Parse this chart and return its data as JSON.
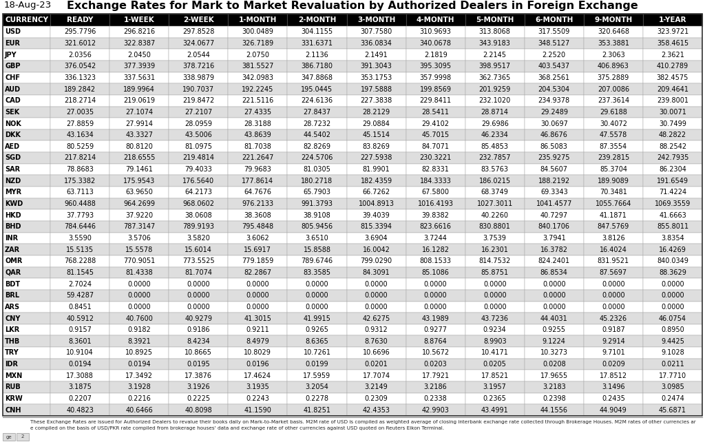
{
  "date": "18-Aug-23",
  "title": "Exchange Rates for Mark to Market Revaluation by Authorized Dealers in Foreign Exchange",
  "headers": [
    "CURRENCY",
    "READY",
    "1-WEEK",
    "2-WEEK",
    "1-MONTH",
    "2-MONTH",
    "3-MONTH",
    "4-MONTH",
    "5-MONTH",
    "6-MONTH",
    "9-MONTH",
    "1-YEAR"
  ],
  "rows": [
    [
      "USD",
      "295.7796",
      "296.8216",
      "297.8528",
      "300.0489",
      "304.1155",
      "307.7580",
      "310.9693",
      "313.8068",
      "317.5509",
      "320.6468",
      "323.9721"
    ],
    [
      "EUR",
      "321.6012",
      "322.8387",
      "324.0677",
      "326.7189",
      "331.6371",
      "336.0834",
      "340.0678",
      "343.9183",
      "348.5127",
      "353.3881",
      "358.4615"
    ],
    [
      "JPY",
      "2.0356",
      "2.0450",
      "2.0544",
      "2.0750",
      "2.1136",
      "2.1491",
      "2.1819",
      "2.2145",
      "2.2520",
      "2.3063",
      "2.3621"
    ],
    [
      "GBP",
      "376.0542",
      "377.3939",
      "378.7216",
      "381.5527",
      "386.7180",
      "391.3043",
      "395.3095",
      "398.9517",
      "403.5437",
      "406.8963",
      "410.2789"
    ],
    [
      "CHF",
      "336.1323",
      "337.5631",
      "338.9879",
      "342.0983",
      "347.8868",
      "353.1753",
      "357.9998",
      "362.7365",
      "368.2561",
      "375.2889",
      "382.4575"
    ],
    [
      "AUD",
      "189.2842",
      "189.9964",
      "190.7037",
      "192.2245",
      "195.0445",
      "197.5888",
      "199.8569",
      "201.9259",
      "204.5304",
      "207.0086",
      "209.4641"
    ],
    [
      "CAD",
      "218.2714",
      "219.0619",
      "219.8472",
      "221.5116",
      "224.6136",
      "227.3838",
      "229.8411",
      "232.1020",
      "234.9378",
      "237.3614",
      "239.8001"
    ],
    [
      "SEK",
      "27.0035",
      "27.1074",
      "27.2107",
      "27.4335",
      "27.8437",
      "28.2129",
      "28.5411",
      "28.8714",
      "29.2489",
      "29.6188",
      "30.0071"
    ],
    [
      "NOK",
      "27.8859",
      "27.9914",
      "28.0959",
      "28.3188",
      "28.7232",
      "29.0884",
      "29.4102",
      "29.6986",
      "30.0697",
      "30.4072",
      "30.7499"
    ],
    [
      "DKK",
      "43.1634",
      "43.3327",
      "43.5006",
      "43.8639",
      "44.5402",
      "45.1514",
      "45.7015",
      "46.2334",
      "46.8676",
      "47.5578",
      "48.2822"
    ],
    [
      "AED",
      "80.5259",
      "80.8120",
      "81.0975",
      "81.7038",
      "82.8269",
      "83.8269",
      "84.7071",
      "85.4853",
      "86.5083",
      "87.3554",
      "88.2542"
    ],
    [
      "SGD",
      "217.8214",
      "218.6555",
      "219.4814",
      "221.2647",
      "224.5706",
      "227.5938",
      "230.3221",
      "232.7857",
      "235.9275",
      "239.2815",
      "242.7935"
    ],
    [
      "SAR",
      "78.8683",
      "79.1461",
      "79.4033",
      "79.9683",
      "81.0305",
      "81.9901",
      "82.8331",
      "83.5763",
      "84.5607",
      "85.3704",
      "86.2304"
    ],
    [
      "NZD",
      "175.3382",
      "175.9543",
      "176.5640",
      "177.8614",
      "180.2718",
      "182.4359",
      "184.3333",
      "186.0215",
      "188.2192",
      "189.9089",
      "191.6549"
    ],
    [
      "MYR",
      "63.7113",
      "63.9650",
      "64.2173",
      "64.7676",
      "65.7903",
      "66.7262",
      "67.5800",
      "68.3749",
      "69.3343",
      "70.3481",
      "71.4224"
    ],
    [
      "KWD",
      "960.4488",
      "964.2699",
      "968.0602",
      "976.2133",
      "991.3793",
      "1004.8913",
      "1016.4193",
      "1027.3011",
      "1041.4577",
      "1055.7664",
      "1069.3559"
    ],
    [
      "HKD",
      "37.7793",
      "37.9220",
      "38.0608",
      "38.3608",
      "38.9108",
      "39.4039",
      "39.8382",
      "40.2260",
      "40.7297",
      "41.1871",
      "41.6663"
    ],
    [
      "BHD",
      "784.6446",
      "787.3147",
      "789.9193",
      "795.4848",
      "805.9456",
      "815.3394",
      "823.6616",
      "830.8801",
      "840.1706",
      "847.5769",
      "855.8011"
    ],
    [
      "INR",
      "3.5590",
      "3.5706",
      "3.5820",
      "3.6062",
      "3.6510",
      "3.6904",
      "3.7244",
      "3.7539",
      "3.7941",
      "3.8126",
      "3.8354"
    ],
    [
      "ZAR",
      "15.5135",
      "15.5578",
      "15.6014",
      "15.6917",
      "15.8588",
      "16.0042",
      "16.1282",
      "16.2301",
      "16.3782",
      "16.4024",
      "16.4269"
    ],
    [
      "OMR",
      "768.2288",
      "770.9051",
      "773.5525",
      "779.1859",
      "789.6746",
      "799.0290",
      "808.1533",
      "814.7532",
      "824.2401",
      "831.9521",
      "840.0349"
    ],
    [
      "QAR",
      "81.1545",
      "81.4338",
      "81.7074",
      "82.2867",
      "83.3585",
      "84.3091",
      "85.1086",
      "85.8751",
      "86.8534",
      "87.5697",
      "88.3629"
    ],
    [
      "BDT",
      "2.7024",
      "0.0000",
      "0.0000",
      "0.0000",
      "0.0000",
      "0.0000",
      "0.0000",
      "0.0000",
      "0.0000",
      "0.0000",
      "0.0000"
    ],
    [
      "BRL",
      "59.4287",
      "0.0000",
      "0.0000",
      "0.0000",
      "0.0000",
      "0.0000",
      "0.0000",
      "0.0000",
      "0.0000",
      "0.0000",
      "0.0000"
    ],
    [
      "ARS",
      "0.8451",
      "0.0000",
      "0.0000",
      "0.0000",
      "0.0000",
      "0.0000",
      "0.0000",
      "0.0000",
      "0.0000",
      "0.0000",
      "0.0000"
    ],
    [
      "CNY",
      "40.5912",
      "40.7600",
      "40.9279",
      "41.3015",
      "41.9915",
      "42.6275",
      "43.1989",
      "43.7236",
      "44.4031",
      "45.2326",
      "46.0754"
    ],
    [
      "LKR",
      "0.9157",
      "0.9182",
      "0.9186",
      "0.9211",
      "0.9265",
      "0.9312",
      "0.9277",
      "0.9234",
      "0.9255",
      "0.9187",
      "0.8950"
    ],
    [
      "THB",
      "8.3601",
      "8.3921",
      "8.4234",
      "8.4979",
      "8.6365",
      "8.7630",
      "8.8764",
      "8.9903",
      "9.1224",
      "9.2914",
      "9.4425"
    ],
    [
      "TRY",
      "10.9104",
      "10.8925",
      "10.8665",
      "10.8029",
      "10.7261",
      "10.6696",
      "10.5672",
      "10.4171",
      "10.3273",
      "9.7101",
      "9.1028"
    ],
    [
      "IDR",
      "0.0194",
      "0.0194",
      "0.0195",
      "0.0196",
      "0.0199",
      "0.0201",
      "0.0203",
      "0.0205",
      "0.0208",
      "0.0209",
      "0.0211"
    ],
    [
      "MXN",
      "17.3088",
      "17.3492",
      "17.3876",
      "17.4624",
      "17.5959",
      "17.7074",
      "17.7921",
      "17.8521",
      "17.9655",
      "17.8512",
      "17.7710"
    ],
    [
      "RUB",
      "3.1875",
      "3.1928",
      "3.1926",
      "3.1935",
      "3.2054",
      "3.2149",
      "3.2186",
      "3.1957",
      "3.2183",
      "3.1496",
      "3.0985"
    ],
    [
      "KRW",
      "0.2207",
      "0.2216",
      "0.2225",
      "0.2243",
      "0.2278",
      "0.2309",
      "0.2338",
      "0.2365",
      "0.2398",
      "0.2435",
      "0.2474"
    ],
    [
      "CNH",
      "40.4823",
      "40.6466",
      "40.8098",
      "41.1590",
      "41.8251",
      "42.4353",
      "42.9903",
      "43.4991",
      "44.1556",
      "44.9049",
      "45.6871"
    ]
  ],
  "footer_line1": "These Exchange Rates are issued for Authorized Dealers to revalue their books daily on Mark-to-Market basis. M2M rate of USD is compiled as weighted average of closing interbank exchange rate collected through Brokerage Houses. M2M rates of other currencies are compiled on the basis of USD/PKR rate compiled from brokerage houses' data and exchange rate of other currencies against USD quoted on Reuters Eikon Terminal.",
  "header_bg": "#000000",
  "header_fg": "#ffffff",
  "row_bg_odd": "#ffffff",
  "row_bg_even": "#dedede",
  "title_color": "#000000",
  "date_color": "#000000",
  "cell_font_size": 7.0,
  "header_font_size": 7.5,
  "title_font_size": 11.5
}
